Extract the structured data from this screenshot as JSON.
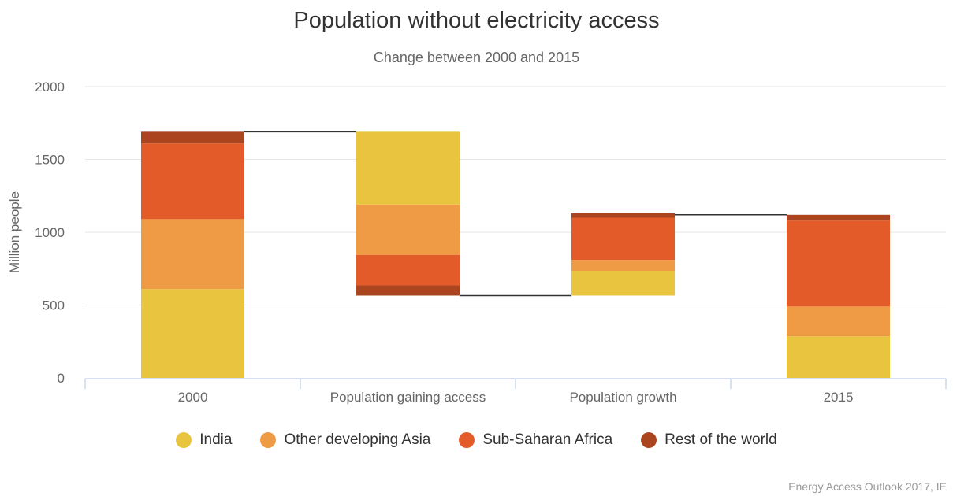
{
  "chart_data": {
    "type": "waterfall-stacked-bar",
    "title": "Population without electricity access",
    "subtitle": "Change between 2000 and 2015",
    "ylabel": "Million people",
    "ylim": [
      0,
      2000
    ],
    "yticks": [
      0,
      500,
      1000,
      1500,
      2000
    ],
    "grid": true,
    "legend_position": "bottom",
    "categories": [
      "2000",
      "Population gaining access",
      "Population growth",
      "2015"
    ],
    "series": [
      {
        "name": "India",
        "color": "#e9c53f",
        "values": [
          610,
          500,
          170,
          285
        ]
      },
      {
        "name": "Other developing Asia",
        "color": "#ef9a45",
        "values": [
          480,
          345,
          75,
          205
        ]
      },
      {
        "name": "Sub-Saharan Africa",
        "color": "#e35b29",
        "values": [
          520,
          210,
          290,
          590
        ]
      },
      {
        "name": "Rest of the world",
        "color": "#ab4520",
        "values": [
          80,
          70,
          30,
          40
        ]
      }
    ],
    "bar_base": [
      0,
      565,
      565,
      0
    ],
    "stack_order": [
      "bottom-up",
      "top-down",
      "bottom-up",
      "bottom-up"
    ],
    "connectors": [
      1690,
      565,
      1120
    ],
    "source": "Energy Access Outlook 2017, IE"
  }
}
